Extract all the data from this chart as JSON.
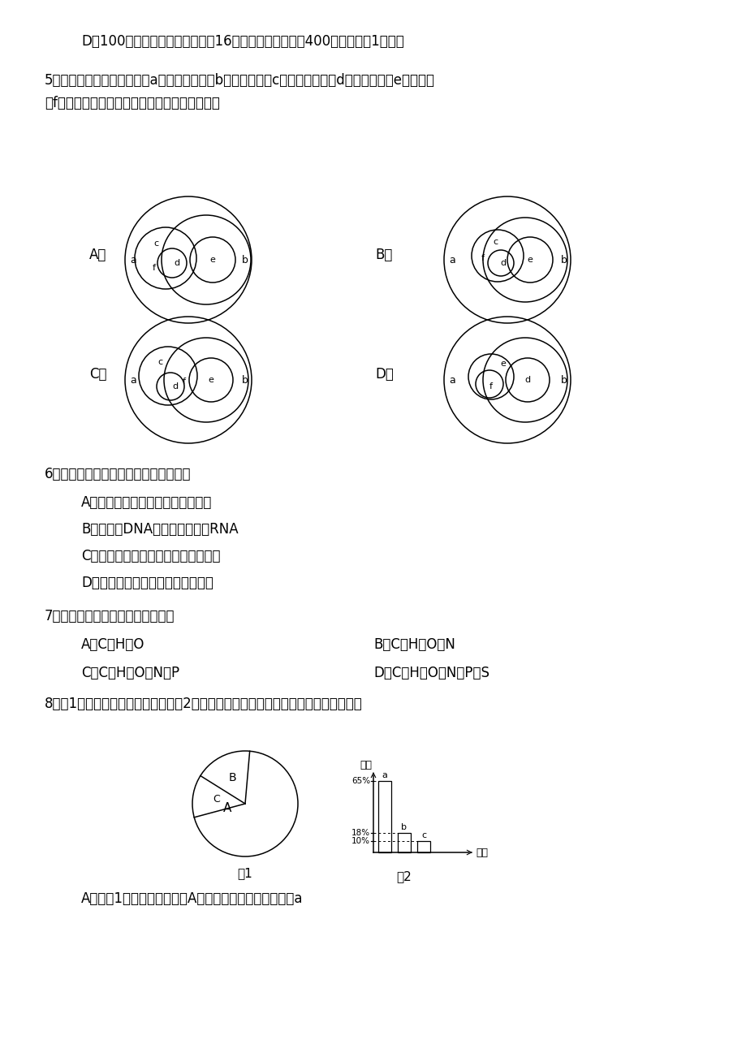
{
  "background": "#ffffff",
  "line1": "D．100倍视野下看到充满视野的16个完整细胞，放大至400倍时能看到1个细胞",
  "q5_text1": "5．若用圆圈表示原核生物（a）、真核生物（b）、乳酸菌（c）、硝化细菌（d）、酵母菌（e）、细菌",
  "q5_text2": "（f），则这些概念的从属关系正确的是（　　）",
  "q6_text": "6．下列有关细胞共性的叙述，正确的是",
  "q6_A": "A．都具有细胞膜且一定能传递信息",
  "q6_B": "B．都含有DNA但不一定都含有RNA",
  "q6_C": "C．都具有细胞质且一定含有高尔基体",
  "q6_D": "D．都含有蛋白质但不一定含有脂质",
  "q7_text": "7．核酸和脂肪酸共有的化学元素是",
  "q7_A": "A．C、H、O",
  "q7_B": "B．C、H、O、N",
  "q7_C": "C．C、H、O、N、P",
  "q7_D": "D．C、H、O、N、P、S",
  "q8_text": "8．图1表示细胞中的化合物含量，图2表示细胞鲜重的元素含量，下列说法不正确的是",
  "q8_A": "A．若图1表示细胞鲜重，则A化合物中含量最多的元素是a",
  "fig1_label": "图1",
  "fig2_label": "图2",
  "yuan_su": "元素",
  "han_liang": "含量"
}
